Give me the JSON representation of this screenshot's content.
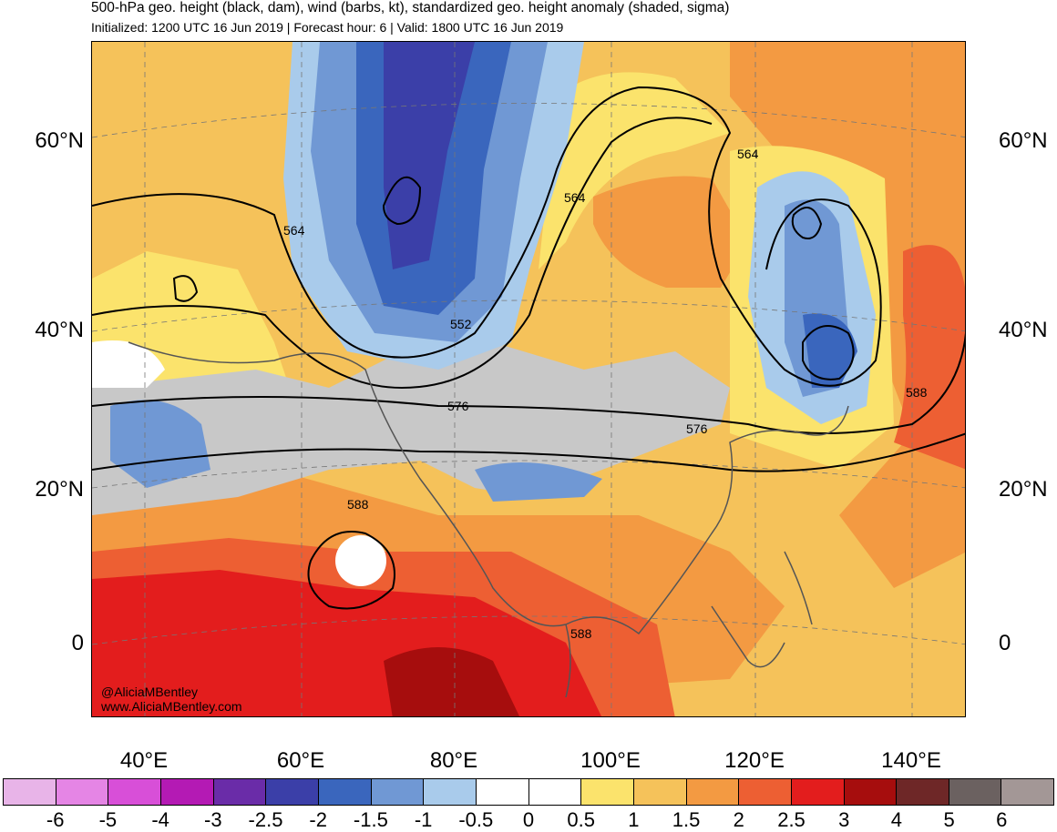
{
  "header": {
    "title": "500-hPa geo. height (black, dam), wind (barbs, kt), standardized geo. height anomaly (shaded, sigma)",
    "subtitle": "Initialized: 1200 UTC 16 Jun 2019 | Forecast hour: 6 | Valid: 1800 UTC 16 Jun 2019"
  },
  "map": {
    "lat_labels": [
      "60°N",
      "40°N",
      "20°N",
      "0"
    ],
    "lon_labels": [
      "40°E",
      "60°E",
      "80°E",
      "100°E",
      "120°E",
      "140°E"
    ],
    "contour_labels": [
      "564",
      "564",
      "564",
      "552",
      "576",
      "576",
      "588",
      "588",
      "588"
    ],
    "credit_handle": "@AliciaMBentley",
    "credit_site": "www.AliciaMBentley.com"
  },
  "colorbar": {
    "colors": [
      "#e8b4e8",
      "#e585e5",
      "#d84fd8",
      "#b41ab4",
      "#6a2ca8",
      "#3b3fa8",
      "#3a66bd",
      "#7098d4",
      "#a9cbeb",
      "#ffffff",
      "#ffffff",
      "#fbe36c",
      "#f5c25a",
      "#f39a42",
      "#ed5f33",
      "#e31d1d",
      "#a60d0d",
      "#6e2727",
      "#6b6160",
      "#a39796"
    ],
    "ticks": [
      "-6",
      "-5",
      "-4",
      "-3",
      "-2.5",
      "-2",
      "-1.5",
      "-1",
      "-0.5",
      "0",
      "0.5",
      "1",
      "1.5",
      "2",
      "2.5",
      "3",
      "4",
      "5",
      "6"
    ]
  }
}
